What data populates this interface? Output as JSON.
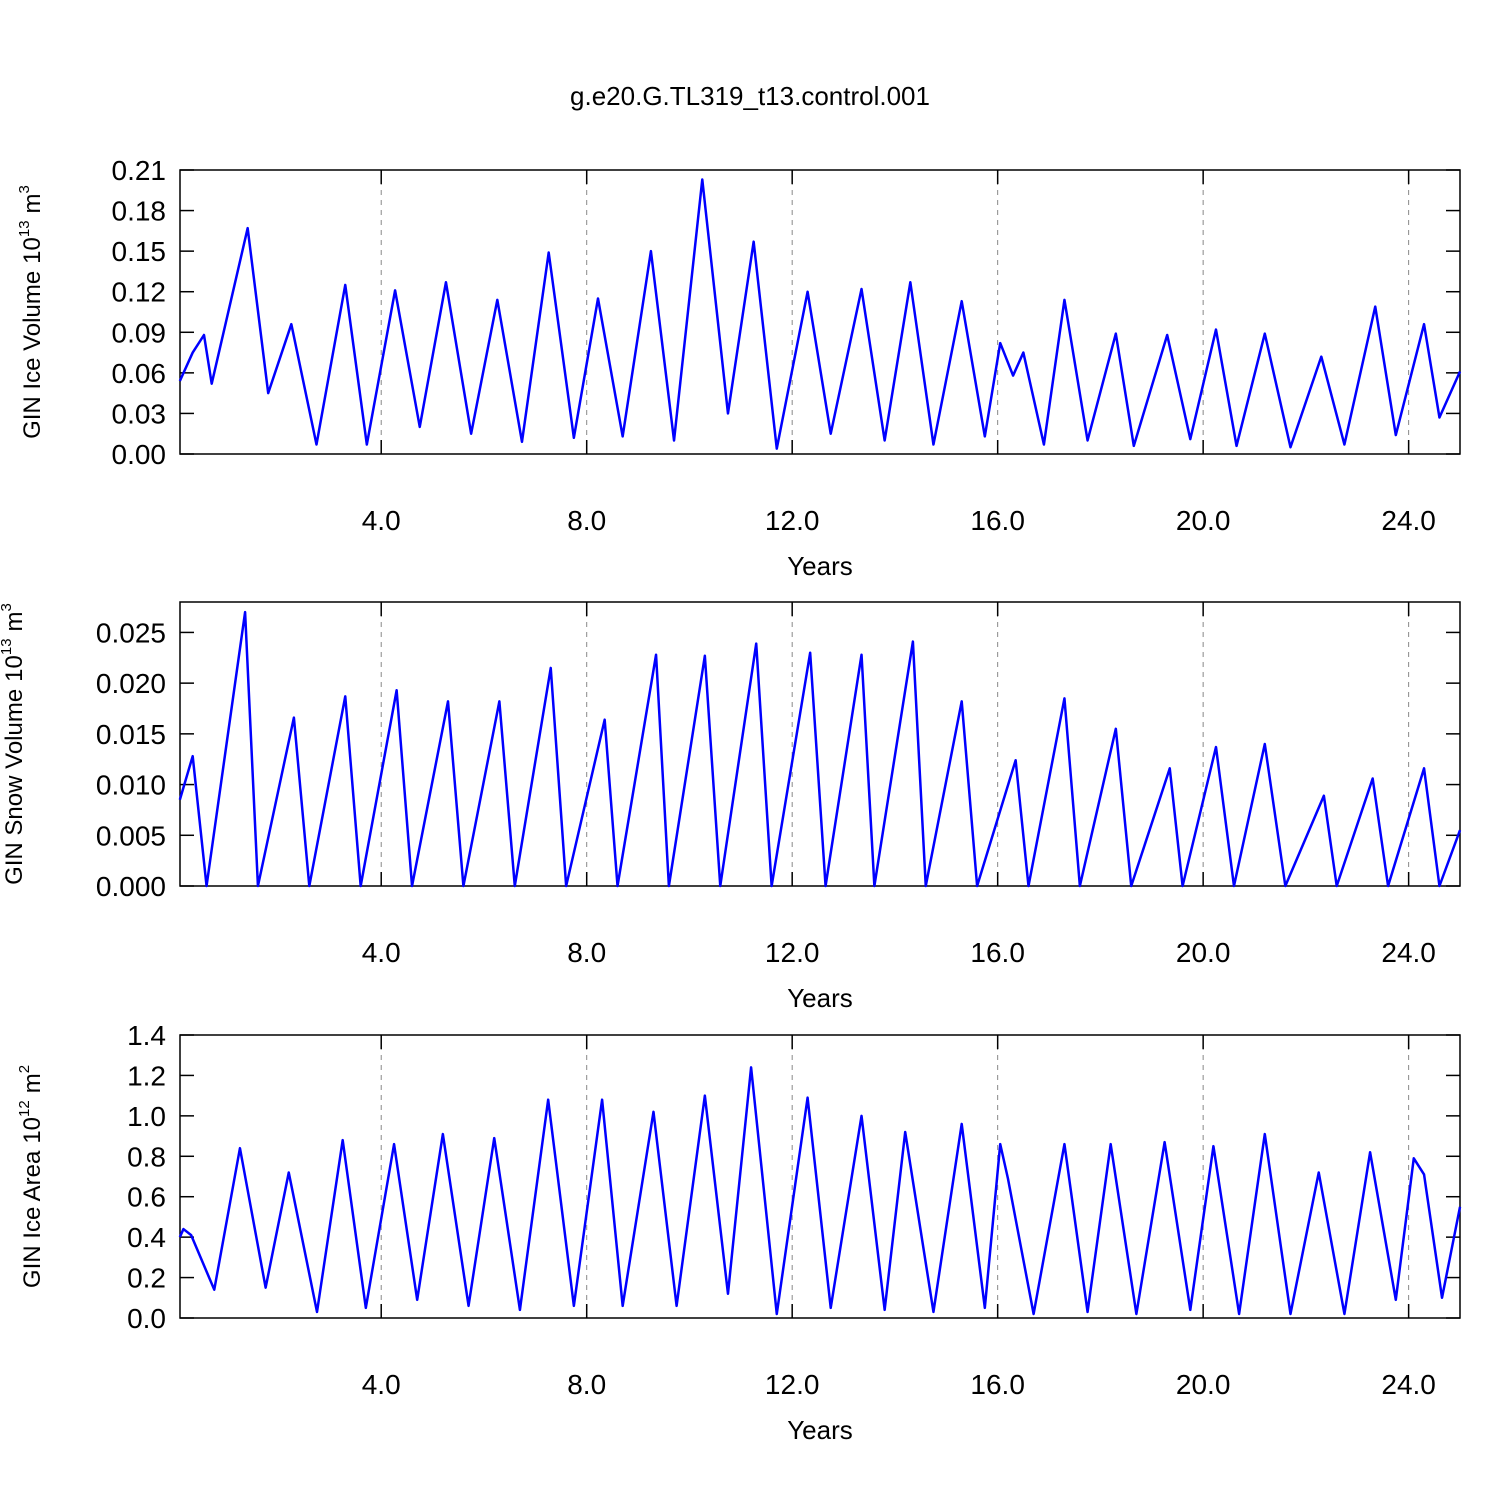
{
  "chart_data": [
    {
      "type": "line",
      "title": "g.e20.G.TL319_t13.control.001",
      "ylabel": "GIN Ice Volume",
      "yunit": {
        "base": "10",
        "exp": "13",
        "unit": "m",
        "unit_exp": "3"
      },
      "xlabel": "Years",
      "x": [
        0.08,
        0.33,
        0.55,
        0.7,
        1.4,
        1.8,
        2.25,
        2.74,
        3.3,
        3.72,
        4.27,
        4.75,
        5.26,
        5.75,
        6.26,
        6.74,
        7.26,
        7.75,
        8.22,
        8.7,
        9.25,
        9.7,
        10.25,
        10.75,
        11.25,
        11.7,
        12.3,
        12.75,
        13.35,
        13.8,
        14.3,
        14.75,
        15.3,
        15.75,
        16.05,
        16.3,
        16.5,
        16.9,
        17.3,
        17.75,
        18.3,
        18.65,
        19.3,
        19.75,
        20.25,
        20.65,
        21.2,
        21.7,
        22.3,
        22.75,
        23.35,
        23.75,
        24.3,
        24.6,
        25.0
      ],
      "series": [
        {
          "color": "#0000ff",
          "values": [
            0.054,
            0.075,
            0.088,
            0.052,
            0.167,
            0.045,
            0.096,
            0.007,
            0.125,
            0.007,
            0.121,
            0.02,
            0.127,
            0.015,
            0.114,
            0.009,
            0.149,
            0.012,
            0.115,
            0.013,
            0.15,
            0.01,
            0.203,
            0.03,
            0.157,
            0.004,
            0.12,
            0.015,
            0.122,
            0.01,
            0.127,
            0.007,
            0.113,
            0.013,
            0.082,
            0.058,
            0.075,
            0.007,
            0.114,
            0.01,
            0.089,
            0.006,
            0.088,
            0.011,
            0.092,
            0.006,
            0.089,
            0.005,
            0.072,
            0.007,
            0.109,
            0.014,
            0.096,
            0.027,
            0.061
          ]
        }
      ],
      "xlim": [
        0.083,
        25.0
      ],
      "ylim": [
        0,
        0.21
      ],
      "xticks": [
        {
          "value": 4,
          "label": "4.0"
        },
        {
          "value": 8,
          "label": "8.0"
        },
        {
          "value": 12,
          "label": "12.0"
        },
        {
          "value": 16,
          "label": "16.0"
        },
        {
          "value": 20,
          "label": "20.0"
        },
        {
          "value": 24,
          "label": "24.0"
        }
      ],
      "yticks": [
        {
          "value": 0,
          "label": "0.00"
        },
        0.03,
        0.06,
        0.09,
        0.12,
        0.15,
        0.18,
        0.21
      ],
      "grid": true
    },
    {
      "type": "line",
      "ylabel": "GIN Snow Volume",
      "yunit": {
        "base": "10",
        "exp": "13",
        "unit": "m",
        "unit_exp": "3"
      },
      "xlabel": "Years",
      "x": [
        0.08,
        0.33,
        0.6,
        1.35,
        1.6,
        2.3,
        2.6,
        3.3,
        3.6,
        4.3,
        4.6,
        5.3,
        5.6,
        6.3,
        6.6,
        7.3,
        7.6,
        8.35,
        8.6,
        9.35,
        9.6,
        10.3,
        10.6,
        11.3,
        11.6,
        12.35,
        12.65,
        13.35,
        13.6,
        14.35,
        14.6,
        15.3,
        15.6,
        16.35,
        16.6,
        17.3,
        17.6,
        18.3,
        18.6,
        19.35,
        19.6,
        20.25,
        20.6,
        21.2,
        21.6,
        22.35,
        22.6,
        23.3,
        23.6,
        24.3,
        24.6,
        25.0
      ],
      "series": [
        {
          "color": "#0000ff",
          "values": [
            0.0085,
            0.0128,
            0,
            0.027,
            0,
            0.0166,
            0,
            0.0187,
            0,
            0.0193,
            0,
            0.0182,
            0,
            0.0182,
            0,
            0.0215,
            0,
            0.0164,
            0,
            0.0228,
            0,
            0.0227,
            0,
            0.0239,
            0,
            0.023,
            0,
            0.0228,
            0,
            0.0241,
            0,
            0.0182,
            0,
            0.0124,
            0,
            0.0185,
            0,
            0.0155,
            0,
            0.0116,
            0,
            0.0137,
            0,
            0.014,
            0,
            0.0089,
            0,
            0.0106,
            0,
            0.0116,
            0,
            0.0055
          ]
        }
      ],
      "xlim": [
        0.083,
        25.0
      ],
      "ylim": [
        0,
        0.028
      ],
      "xticks": [
        {
          "value": 4,
          "label": "4.0"
        },
        {
          "value": 8,
          "label": "8.0"
        },
        {
          "value": 12,
          "label": "12.0"
        },
        {
          "value": 16,
          "label": "16.0"
        },
        {
          "value": 20,
          "label": "20.0"
        },
        {
          "value": 24,
          "label": "24.0"
        }
      ],
      "yticks": [
        {
          "value": 0,
          "label": "0.000"
        },
        0.005,
        {
          "value": 0.01,
          "label": "0.010"
        },
        0.015,
        {
          "value": 0.02,
          "label": "0.020"
        },
        0.025
      ],
      "grid": true
    },
    {
      "type": "line",
      "ylabel": "GIN Ice Area",
      "yunit": {
        "base": "10",
        "exp": "12",
        "unit": "m",
        "unit_exp": "2"
      },
      "xlabel": "Years",
      "x": [
        0.08,
        0.15,
        0.3,
        0.75,
        1.25,
        1.75,
        2.2,
        2.75,
        3.25,
        3.7,
        4.25,
        4.7,
        5.2,
        5.7,
        6.2,
        6.7,
        7.25,
        7.75,
        8.3,
        8.7,
        9.3,
        9.75,
        10.3,
        10.75,
        11.2,
        11.7,
        12.3,
        12.75,
        13.35,
        13.8,
        14.2,
        14.75,
        15.3,
        15.75,
        16.05,
        16.2,
        16.7,
        17.3,
        17.75,
        18.2,
        18.7,
        19.25,
        19.75,
        20.2,
        20.7,
        21.2,
        21.7,
        22.25,
        22.75,
        23.25,
        23.75,
        24.1,
        24.3,
        24.65,
        25.0
      ],
      "series": [
        {
          "color": "#0000ff",
          "values": [
            0.4,
            0.44,
            0.41,
            0.14,
            0.84,
            0.15,
            0.72,
            0.03,
            0.88,
            0.05,
            0.86,
            0.09,
            0.91,
            0.06,
            0.89,
            0.04,
            1.08,
            0.06,
            1.08,
            0.06,
            1.02,
            0.06,
            1.1,
            0.12,
            1.24,
            0.02,
            1.09,
            0.05,
            1.0,
            0.04,
            0.92,
            0.03,
            0.96,
            0.05,
            0.86,
            0.69,
            0.02,
            0.86,
            0.03,
            0.86,
            0.02,
            0.87,
            0.04,
            0.85,
            0.02,
            0.91,
            0.02,
            0.72,
            0.02,
            0.82,
            0.09,
            0.79,
            0.71,
            0.1,
            0.55
          ]
        }
      ],
      "xlim": [
        0.083,
        25.0
      ],
      "ylim": [
        0,
        1.4
      ],
      "xticks": [
        {
          "value": 4,
          "label": "4.0"
        },
        {
          "value": 8,
          "label": "8.0"
        },
        {
          "value": 12,
          "label": "12.0"
        },
        {
          "value": 16,
          "label": "16.0"
        },
        {
          "value": 20,
          "label": "20.0"
        },
        {
          "value": 24,
          "label": "24.0"
        }
      ],
      "yticks": [
        {
          "value": 0,
          "label": "0.0"
        },
        0.2,
        0.4,
        0.6,
        0.8,
        {
          "value": 1,
          "label": "1.0"
        },
        1.2,
        1.4
      ],
      "grid": true
    }
  ]
}
